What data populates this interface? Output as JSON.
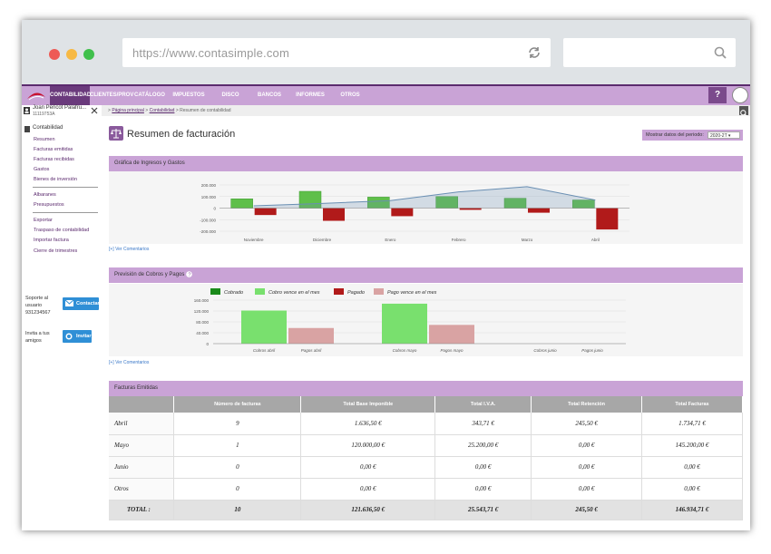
{
  "browser": {
    "url": "https://www.contasimple.com",
    "dot_colors": [
      "#ee5a55",
      "#f7b944",
      "#40c04c"
    ]
  },
  "nav": {
    "items": [
      {
        "label": "CONTABILIDAD",
        "active": true
      },
      {
        "label": "CLIENTES/PROV",
        "active": false
      },
      {
        "label": "CATÁLOGO",
        "active": false
      },
      {
        "label": "IMPUESTOS",
        "active": false
      },
      {
        "label": "DISCO VIRTUAL",
        "active": false
      },
      {
        "label": "BANCOS",
        "active": false
      },
      {
        "label": "INFORMES",
        "active": false
      },
      {
        "label": "OTROS",
        "active": false
      }
    ],
    "help_label": "?"
  },
  "sidebar": {
    "user_name": "Joan Pericot Palafru...",
    "user_id": "11119753A",
    "heading": "Contabilidad",
    "group1": [
      "Resumen",
      "Facturas emitidas",
      "Facturas recibidas",
      "Gastos",
      "Bienes de inversión"
    ],
    "group2": [
      "Albaranes",
      "Presupuestos"
    ],
    "group3": [
      "Exportar",
      "Traspaso de contabilidad",
      "Importar factura",
      "Cierre de trimestres"
    ],
    "support_text": [
      "Soporte al",
      "usuario",
      "931234567"
    ],
    "contact_button": "Contactar",
    "invite_text": [
      "Invita a tus",
      "amigos"
    ],
    "invite_button": "Invitar"
  },
  "breadcrumb": {
    "root": "Página principal",
    "mid": "Contabilidad",
    "current": "Resumen de contabilidad",
    "sep": ">"
  },
  "page": {
    "title": "Resumen de facturación",
    "period_label": "Mostrar datos del periodo:",
    "period_value": "2020-2T"
  },
  "sections": {
    "chart1_title": "Gráfica de Ingresos y Gastos",
    "chart2_title": "Previsión de Cobros y Pagos",
    "comments_link": "[+] Ver Comentarios",
    "table_title": "Facturas Emitidas"
  },
  "chart_data": [
    {
      "type": "bar",
      "title": "Gráfica de Ingresos y Gastos",
      "categories": [
        "Noviembre",
        "Diciembre",
        "Enero",
        "Febrero",
        "Marzo",
        "Abril"
      ],
      "ylim": [
        -200000,
        200000
      ],
      "yticks": [
        "200.000",
        "100.000",
        "0",
        "-100.000",
        "-200.000"
      ],
      "series": [
        {
          "values": [
            80000,
            145000,
            95000,
            100000,
            85000,
            70000
          ],
          "color": "#5fbf4a"
        },
        {
          "values": [
            -60000,
            -110000,
            -70000,
            -15000,
            -40000,
            -185000
          ],
          "color": "#b11a1a"
        },
        {
          "values": [
            20000,
            40000,
            65000,
            140000,
            185000,
            70000
          ],
          "color": "#6a8fb3"
        }
      ]
    },
    {
      "type": "bar",
      "title": "Previsión de Cobros y Pagos",
      "categories": [
        "Cobros abril",
        "Pagos abril",
        "Cobros mayo",
        "Pagos mayo",
        "Cobros junio",
        "Pagos junio"
      ],
      "ylim": [
        0,
        160000
      ],
      "yticks": [
        "160.000",
        "120.000",
        "80.000",
        "40.000",
        "0"
      ],
      "series": [
        {
          "name": "Cobrado",
          "color": "#1a8a1a"
        },
        {
          "name": "Cobro vence en el mes",
          "color": "#79e06e"
        },
        {
          "name": "Pagado",
          "color": "#b11a1a"
        },
        {
          "name": "Pago vence en el mes",
          "color": "#d9a3a3"
        }
      ],
      "values": [
        121636.5,
        57500,
        146934.71,
        69000,
        0,
        0
      ]
    }
  ],
  "table": {
    "headers": [
      "",
      "Número de facturas",
      "Total Base Imponible",
      "Total I.V.A.",
      "Total Retención",
      "Total Facturas"
    ],
    "rows": [
      [
        "Abril",
        "9",
        "1.636,50 €",
        "343,71 €",
        "245,50 €",
        "1.734,71 €"
      ],
      [
        "Mayo",
        "1",
        "120.000,00 €",
        "25.200,00 €",
        "0,00 €",
        "145.200,00 €"
      ],
      [
        "Junio",
        "0",
        "0,00 €",
        "0,00 €",
        "0,00 €",
        "0,00 €"
      ],
      [
        "Otros",
        "0",
        "0,00 €",
        "0,00 €",
        "0,00 €",
        "0,00 €"
      ]
    ],
    "total": [
      "TOTAL :",
      "10",
      "121.636,50 €",
      "25.543,71 €",
      "245,50 €",
      "146.934,71 €"
    ]
  }
}
